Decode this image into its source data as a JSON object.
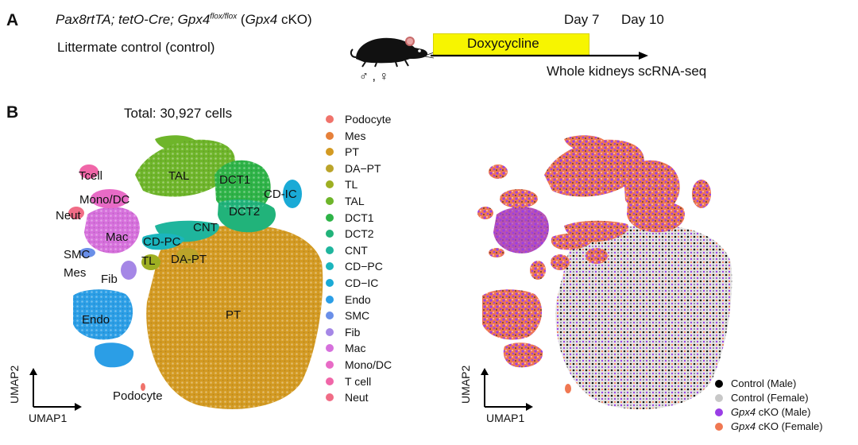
{
  "panelA": {
    "letter": "A",
    "genotype_main": "Pax8rtTA; tetO-Cre; Gpx4",
    "genotype_sup": "flox/flox",
    "genotype_paren_open": " (",
    "genotype_ko": "Gpx4",
    "genotype_ko_suffix": " cKO)",
    "control_label": "Littermate control (control)",
    "sex_label": "♂ , ♀",
    "day7": "Day 7",
    "day10": "Day 10",
    "doxycycline": "Doxycycline",
    "sequencing": "Whole kidneys scRNA-seq",
    "mouse_icon": "mouse-icon"
  },
  "panelB": {
    "letter": "B",
    "total": "Total: 30,927 cells",
    "cluster_labels": [
      "Tcell",
      "Mono/DC",
      "Neut",
      "Mac",
      "SMC",
      "Mes",
      "Fib",
      "TL",
      "Endo",
      "Podocyte",
      "TAL",
      "DCT1",
      "CD-IC",
      "DCT2",
      "CNT",
      "CD-PC",
      "DA-PT",
      "PT"
    ],
    "legend": [
      {
        "label": "Podocyte",
        "color": "#f0736b"
      },
      {
        "label": "Mes",
        "color": "#e6803a"
      },
      {
        "label": "PT",
        "color": "#d39a22"
      },
      {
        "label": "DA−PT",
        "color": "#bba42a"
      },
      {
        "label": "TL",
        "color": "#9eaf22"
      },
      {
        "label": "TAL",
        "color": "#6eb52a"
      },
      {
        "label": "DCT1",
        "color": "#2eb347"
      },
      {
        "label": "DCT2",
        "color": "#21b37a"
      },
      {
        "label": "CNT",
        "color": "#1fb59d"
      },
      {
        "label": "CD−PC",
        "color": "#1bb5bd"
      },
      {
        "label": "CD−IC",
        "color": "#1aaad6"
      },
      {
        "label": "Endo",
        "color": "#2b9ee6"
      },
      {
        "label": "SMC",
        "color": "#6a8fe8"
      },
      {
        "label": "Fib",
        "color": "#a587e6"
      },
      {
        "label": "Mac",
        "color": "#d670dc"
      },
      {
        "label": "Mono/DC",
        "color": "#e86bc6"
      },
      {
        "label": "T cell",
        "color": "#f066a8"
      },
      {
        "label": "Neut",
        "color": "#f06c86"
      }
    ],
    "axis_x": "UMAP1",
    "axis_y": "UMAP2",
    "legend2": [
      {
        "prefix": "Control",
        "suffix": " (Male)",
        "italic": false,
        "color": "#000000"
      },
      {
        "prefix": "Control",
        "suffix": " (Female)",
        "italic": false,
        "color": "#c8c8c8"
      },
      {
        "prefix": "Gpx4",
        "suffix": " cKO (Male)",
        "italic": true,
        "color": "#9a3ee6"
      },
      {
        "prefix": "Gpx4",
        "suffix": " cKO (Female)",
        "italic": true,
        "color": "#f07852"
      }
    ]
  }
}
